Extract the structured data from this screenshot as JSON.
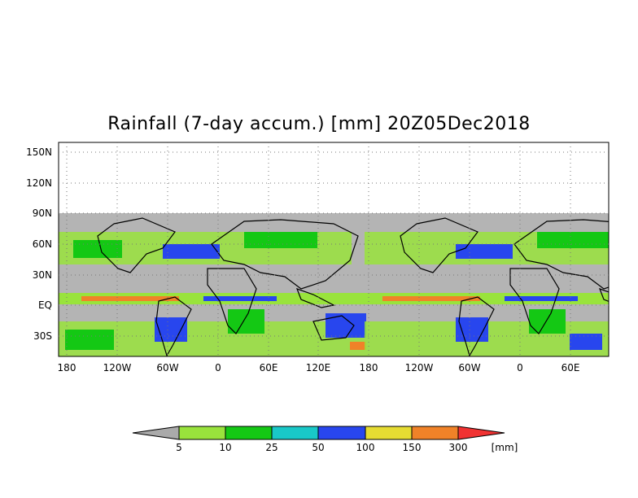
{
  "title": "Rainfall (7-day accum.) [mm] 20Z05Dec2018",
  "map": {
    "lat_labels": [
      "150N",
      "120N",
      "90N",
      "60N",
      "30N",
      "EQ",
      "30S"
    ],
    "lon_labels": [
      "180",
      "120W",
      "60W",
      "0",
      "60E",
      "120E",
      "180",
      "120W",
      "60W",
      "0",
      "60E"
    ],
    "no_data_color": "#b4b4b4",
    "land_outline_color": "#000000"
  },
  "colorbar": {
    "unit": "[mm]",
    "ticks": [
      "5",
      "10",
      "25",
      "50",
      "100",
      "150",
      "300"
    ],
    "colors": [
      "#aaaaaa",
      "#99e33c",
      "#14c814",
      "#19c8c8",
      "#2846ee",
      "#e6dc32",
      "#f08228",
      "#f03232"
    ]
  }
}
